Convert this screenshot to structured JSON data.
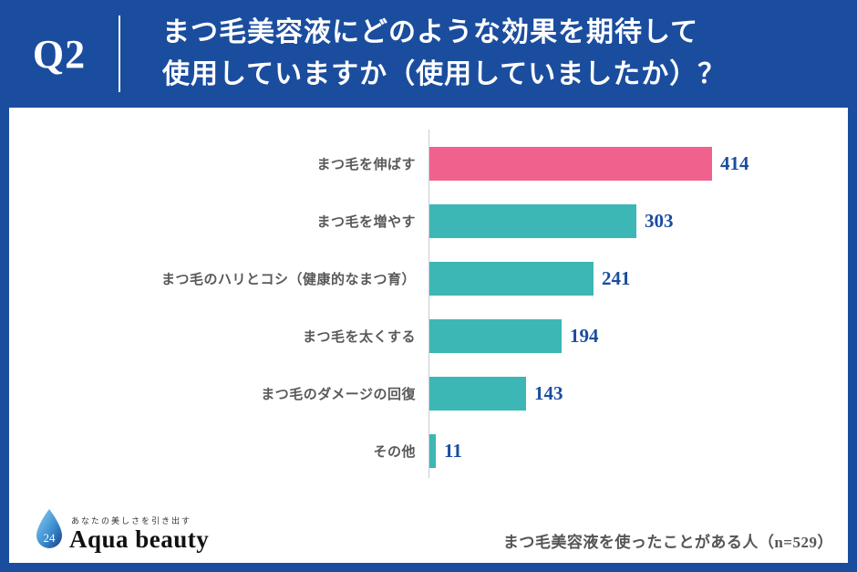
{
  "header": {
    "q_label": "Q2",
    "title_line1": "まつ毛美容液にどのような効果を期待して",
    "title_line2": "使用していますか（使用していましたか）？"
  },
  "chart_data": {
    "type": "bar",
    "orientation": "horizontal",
    "title": "まつ毛美容液にどのような効果を期待して使用していますか（使用していましたか）？",
    "categories": [
      "まつ毛を伸ばす",
      "まつ毛を増やす",
      "まつ毛のハリとコシ（健康的なまつ育）",
      "まつ毛を太くする",
      "まつ毛のダメージの回復",
      "その他"
    ],
    "values": [
      414,
      303,
      241,
      194,
      143,
      11
    ],
    "bar_colors": [
      "#f0618e",
      "#3cb7b5",
      "#3cb7b5",
      "#3cb7b5",
      "#3cb7b5",
      "#3cb7b5"
    ],
    "xlim": [
      0,
      450
    ],
    "grid": false,
    "legend": false
  },
  "footer": {
    "logo_mark": "24",
    "logo_tagline": "あなたの美しさを引き出す",
    "logo_name": "Aqua beauty",
    "note": "まつ毛美容液を使ったことがある人（n=529）"
  },
  "colors": {
    "frame_blue": "#1b4d9e",
    "bar_pink": "#f0618e",
    "bar_teal": "#3cb7b5",
    "value_blue": "#1b4d9e"
  }
}
